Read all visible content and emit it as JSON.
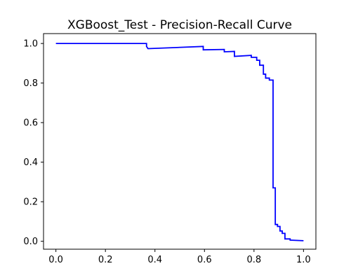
{
  "chart_data": {
    "type": "line",
    "title": "XGBoost_Test - Precision-Recall Curve",
    "xlabel": "",
    "ylabel": "",
    "xlim": [
      -0.05,
      1.05
    ],
    "ylim": [
      -0.04,
      1.05
    ],
    "x_ticks": [
      0.0,
      0.2,
      0.4,
      0.6,
      0.8,
      1.0
    ],
    "y_ticks": [
      0.0,
      0.2,
      0.4,
      0.6,
      0.8,
      1.0
    ],
    "x_tick_labels": [
      "0.0",
      "0.2",
      "0.4",
      "0.6",
      "0.8",
      "1.0"
    ],
    "y_tick_labels": [
      "0.0",
      "0.2",
      "0.4",
      "0.6",
      "0.8",
      "1.0"
    ],
    "grid": false,
    "series": [
      {
        "color": "#0000ff",
        "x": [
          0.0,
          0.366,
          0.366,
          0.372,
          0.595,
          0.595,
          0.68,
          0.68,
          0.721,
          0.721,
          0.789,
          0.789,
          0.811,
          0.811,
          0.823,
          0.823,
          0.838,
          0.838,
          0.847,
          0.847,
          0.862,
          0.862,
          0.877,
          0.877,
          0.886,
          0.886,
          0.895,
          0.895,
          0.905,
          0.905,
          0.914,
          0.914,
          0.925,
          0.925,
          0.946,
          0.946,
          1.0
        ],
        "y": [
          1.0,
          1.0,
          0.985,
          0.974,
          0.985,
          0.968,
          0.97,
          0.958,
          0.96,
          0.935,
          0.94,
          0.93,
          0.93,
          0.915,
          0.915,
          0.89,
          0.89,
          0.845,
          0.845,
          0.825,
          0.825,
          0.815,
          0.815,
          0.27,
          0.27,
          0.085,
          0.085,
          0.075,
          0.075,
          0.052,
          0.052,
          0.04,
          0.04,
          0.012,
          0.012,
          0.006,
          0.003
        ]
      }
    ]
  }
}
